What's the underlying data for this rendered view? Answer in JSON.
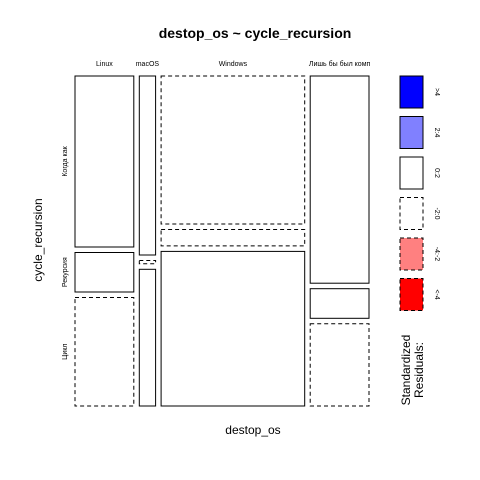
{
  "chart_data": {
    "type": "mosaic",
    "title": "destop_os ~ cycle_recursion",
    "xlabel": "destop_os",
    "ylabel": "cycle_recursion",
    "columns": [
      "Linux",
      "macOS",
      "Windows",
      "Лишь бы был комп"
    ],
    "rows": [
      "Когда как",
      "Рекурсия",
      "Цикл"
    ],
    "column_widths": [
      0.18,
      0.05,
      0.44,
      0.18
    ],
    "cells": [
      {
        "column": "Linux",
        "heights": [
          0.52,
          0.12,
          0.33
        ],
        "residual": [
          "0:2",
          "0:2",
          "-2:0"
        ]
      },
      {
        "column": "macOS",
        "heights": [
          0.55,
          0.01,
          0.42
        ],
        "residual": [
          "0:2",
          "-2:0",
          "0:2"
        ]
      },
      {
        "column": "Windows",
        "heights": [
          0.45,
          0.05,
          0.47
        ],
        "residual": [
          "-2:0",
          "-2:0",
          "0:2"
        ]
      },
      {
        "column": "Лишь бы был комп",
        "heights": [
          0.63,
          0.09,
          0.25
        ],
        "residual": [
          "0:2",
          "0:2",
          "-2:0"
        ]
      }
    ],
    "legend": {
      "title": "Standardized Residuals:",
      "position": "right",
      "items": [
        {
          "label": ">4",
          "color": "#0000ff",
          "dashed": false
        },
        {
          "label": "2:4",
          "color": "#8080ff",
          "dashed": false
        },
        {
          "label": "0:2",
          "color": "#ffffff",
          "dashed": false
        },
        {
          "label": "-2:0",
          "color": "#ffffff",
          "dashed": true
        },
        {
          "label": "-4:-2",
          "color": "#ff8080",
          "dashed": true
        },
        {
          "label": "<-4",
          "color": "#ff0000",
          "dashed": true
        }
      ]
    }
  }
}
